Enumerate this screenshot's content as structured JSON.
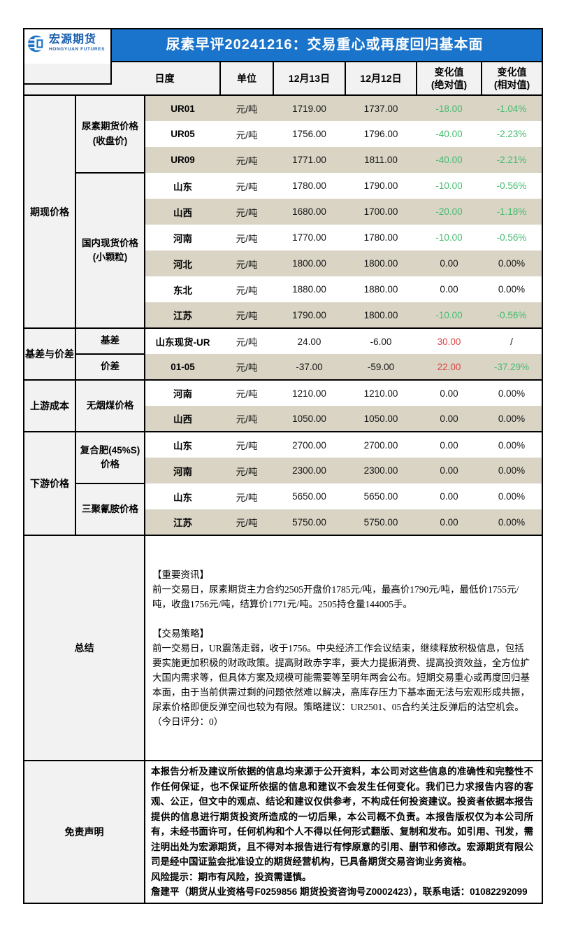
{
  "header": {
    "logo": {
      "name": "宏源期货",
      "subtitle": "HONGYUAN FUTURES"
    },
    "title": "尿素早评20241216：交易重心或再度回归基本面",
    "columns": [
      "日度",
      "单位",
      "12月13日",
      "12月12日",
      "变化值\n(绝对值)",
      "变化值\n(相对值)"
    ]
  },
  "colors": {
    "title_bar_blue": "#1b74cc",
    "logo_blue": "#1b5fae",
    "row_beige": "#d9d4c4",
    "label_gray": "#f2f2f2",
    "change_green": "#44bb70",
    "change_red": "#e04242"
  },
  "table": {
    "sections": [
      {
        "category": "期现价格",
        "groups": [
          {
            "label": "尿素期货价格\n(收盘价)",
            "rows": [
              {
                "name": "UR01",
                "unit": "元/吨",
                "d1": "1719.00",
                "d2": "1737.00",
                "abs": "-18.00",
                "rel": "-1.04%",
                "absCls": "neg",
                "relCls": "neg"
              },
              {
                "name": "UR05",
                "unit": "元/吨",
                "d1": "1756.00",
                "d2": "1796.00",
                "abs": "-40.00",
                "rel": "-2.23%",
                "absCls": "neg",
                "relCls": "neg"
              },
              {
                "name": "UR09",
                "unit": "元/吨",
                "d1": "1771.00",
                "d2": "1811.00",
                "abs": "-40.00",
                "rel": "-2.21%",
                "absCls": "neg",
                "relCls": "neg"
              }
            ]
          },
          {
            "label": "国内现货价格\n(小颗粒)",
            "rows": [
              {
                "name": "山东",
                "unit": "元/吨",
                "d1": "1780.00",
                "d2": "1790.00",
                "abs": "-10.00",
                "rel": "-0.56%",
                "absCls": "neg",
                "relCls": "neg"
              },
              {
                "name": "山西",
                "unit": "元/吨",
                "d1": "1680.00",
                "d2": "1700.00",
                "abs": "-20.00",
                "rel": "-1.18%",
                "absCls": "neg",
                "relCls": "neg"
              },
              {
                "name": "河南",
                "unit": "元/吨",
                "d1": "1770.00",
                "d2": "1780.00",
                "abs": "-10.00",
                "rel": "-0.56%",
                "absCls": "neg",
                "relCls": "neg"
              },
              {
                "name": "河北",
                "unit": "元/吨",
                "d1": "1800.00",
                "d2": "1800.00",
                "abs": "0.00",
                "rel": "0.00%",
                "absCls": "zero",
                "relCls": "zero"
              },
              {
                "name": "东北",
                "unit": "元/吨",
                "d1": "1880.00",
                "d2": "1880.00",
                "abs": "0.00",
                "rel": "0.00%",
                "absCls": "zero",
                "relCls": "zero"
              },
              {
                "name": "江苏",
                "unit": "元/吨",
                "d1": "1790.00",
                "d2": "1800.00",
                "abs": "-10.00",
                "rel": "-0.56%",
                "absCls": "neg",
                "relCls": "neg"
              }
            ]
          }
        ]
      },
      {
        "category": "基差与价差",
        "groups": [
          {
            "label": "基差",
            "rows": [
              {
                "name": "山东现货-UR",
                "unit": "元/吨",
                "d1": "24.00",
                "d2": "-6.00",
                "abs": "30.00",
                "rel": "/",
                "absCls": "pos",
                "relCls": "zero"
              }
            ]
          },
          {
            "label": "价差",
            "rows": [
              {
                "name": "01-05",
                "unit": "元/吨",
                "d1": "-37.00",
                "d2": "-59.00",
                "abs": "22.00",
                "rel": "-37.29%",
                "absCls": "pos",
                "relCls": "neg"
              }
            ]
          }
        ]
      },
      {
        "category": "上游成本",
        "groups": [
          {
            "label": "无烟煤价格",
            "rows": [
              {
                "name": "河南",
                "unit": "元/吨",
                "d1": "1210.00",
                "d2": "1210.00",
                "abs": "0.00",
                "rel": "0.00%",
                "absCls": "zero",
                "relCls": "zero"
              },
              {
                "name": "山西",
                "unit": "元/吨",
                "d1": "1050.00",
                "d2": "1050.00",
                "abs": "0.00",
                "rel": "0.00%",
                "absCls": "zero",
                "relCls": "zero"
              }
            ]
          }
        ]
      },
      {
        "category": "下游价格",
        "groups": [
          {
            "label": "复合肥(45%S)\n价格",
            "rows": [
              {
                "name": "山东",
                "unit": "元/吨",
                "d1": "2700.00",
                "d2": "2700.00",
                "abs": "0.00",
                "rel": "0.00%",
                "absCls": "zero",
                "relCls": "zero"
              },
              {
                "name": "河南",
                "unit": "元/吨",
                "d1": "2300.00",
                "d2": "2300.00",
                "abs": "0.00",
                "rel": "0.00%",
                "absCls": "zero",
                "relCls": "zero"
              }
            ]
          },
          {
            "label": "三聚氰胺价格",
            "rows": [
              {
                "name": "山东",
                "unit": "元/吨",
                "d1": "5650.00",
                "d2": "5650.00",
                "abs": "0.00",
                "rel": "0.00%",
                "absCls": "zero",
                "relCls": "zero"
              },
              {
                "name": "江苏",
                "unit": "元/吨",
                "d1": "5750.00",
                "d2": "5750.00",
                "abs": "0.00",
                "rel": "0.00%",
                "absCls": "zero",
                "relCls": "zero"
              }
            ]
          }
        ]
      }
    ]
  },
  "summary": {
    "label": "总结",
    "news_heading": "【重要资讯】",
    "news_body": "前一交易日，尿素期货主力合约2505开盘价1785元/吨，最高价1790元/吨，最低价1755元/吨，收盘1756元/吨，结算价1771元/吨。2505持仓量144005手。",
    "strategy_heading": "【交易策略】",
    "strategy_body": "前一交易日，UR震荡走弱，收于1756。中央经济工作会议结束，继续释放积极信息，包括要实施更加积极的财政政策。提高财政赤字率，要大力提振消费、提高投资效益，全方位扩大国内需求等，但具体方案及规模可能需要等至明年两会公布。短期交易重心或再度回归基本面，由于当前供需过剩的问题依然难以解决，高库存压力下基本面无法与宏观形成共振，尿素价格即便反弹空间也较为有限。策略建议：UR2501、05合约关注反弹后的沽空机会。（今日评分：0）"
  },
  "disclaimer": {
    "label": "免责声明",
    "body": "本报告分析及建议所依据的信息均来源于公开资料，本公司对这些信息的准确性和完整性不作任何保证，也不保证所依据的信息和建议不会发生任何变化。我们已力求报告内容的客观、公正，但文中的观点、结论和建议仅供参考，不构成任何投资建议。投资者依据本报告提供的信息进行期货投资所造成的一切后果，本公司概不负责。本报告版权仅为本公司所有，未经书面许可，任何机构和个人不得以任何形式翻版、复制和发布。如引用、刊发，需注明出处为宏源期货，且不得对本报告进行有悖原意的引用、删节和修改。宏源期货有限公司是经中国证监会批准设立的期货经营机构，已具备期货交易咨询业务资格。",
    "risk": "风险提示：期市有风险，投资需谨慎。",
    "contact": "詹建平（期货从业资格号F0259856 期货投资咨询号Z0002423），联系电话：01082292099"
  }
}
